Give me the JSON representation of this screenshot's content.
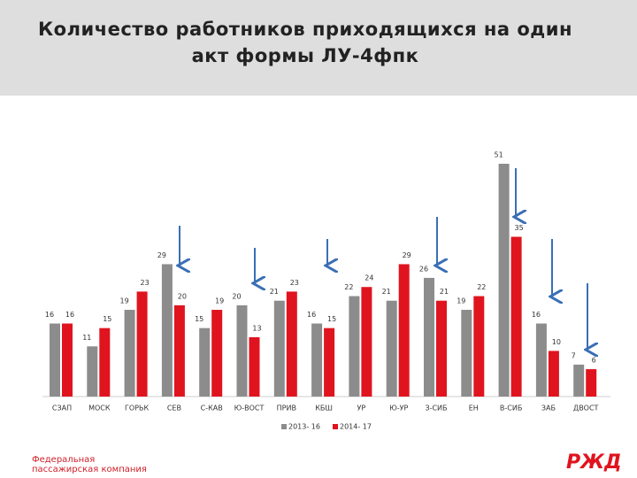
{
  "chart_data": {
    "type": "bar",
    "title": "Количество работников приходящихся на один акт формы ЛУ-4фпк",
    "categories": [
      "СЗАП",
      "МОСК",
      "ГОРЬК",
      "СЕВ",
      "С-КАВ",
      "Ю-ВОСТ",
      "ПРИВ",
      "КБШ",
      "УР",
      "Ю-УР",
      "З-СИБ",
      "ЕН",
      "В-СИБ",
      "ЗАБ",
      "ДВОСТ"
    ],
    "series": [
      {
        "name": "2013- 16",
        "color": "#8c8c8c",
        "values": [
          16,
          11,
          19,
          29,
          15,
          20,
          21,
          16,
          22,
          21,
          26,
          19,
          51,
          16,
          7
        ]
      },
      {
        "name": "2014- 17",
        "color": "#e0141e",
        "values": [
          16,
          15,
          23,
          20,
          19,
          13,
          23,
          15,
          24,
          29,
          21,
          22,
          35,
          10,
          6
        ]
      }
    ],
    "legend": "bottom"
  },
  "footer": {
    "lines": [
      "Федеральная",
      "пассажирская компания"
    ],
    "logo": "РЖД"
  }
}
